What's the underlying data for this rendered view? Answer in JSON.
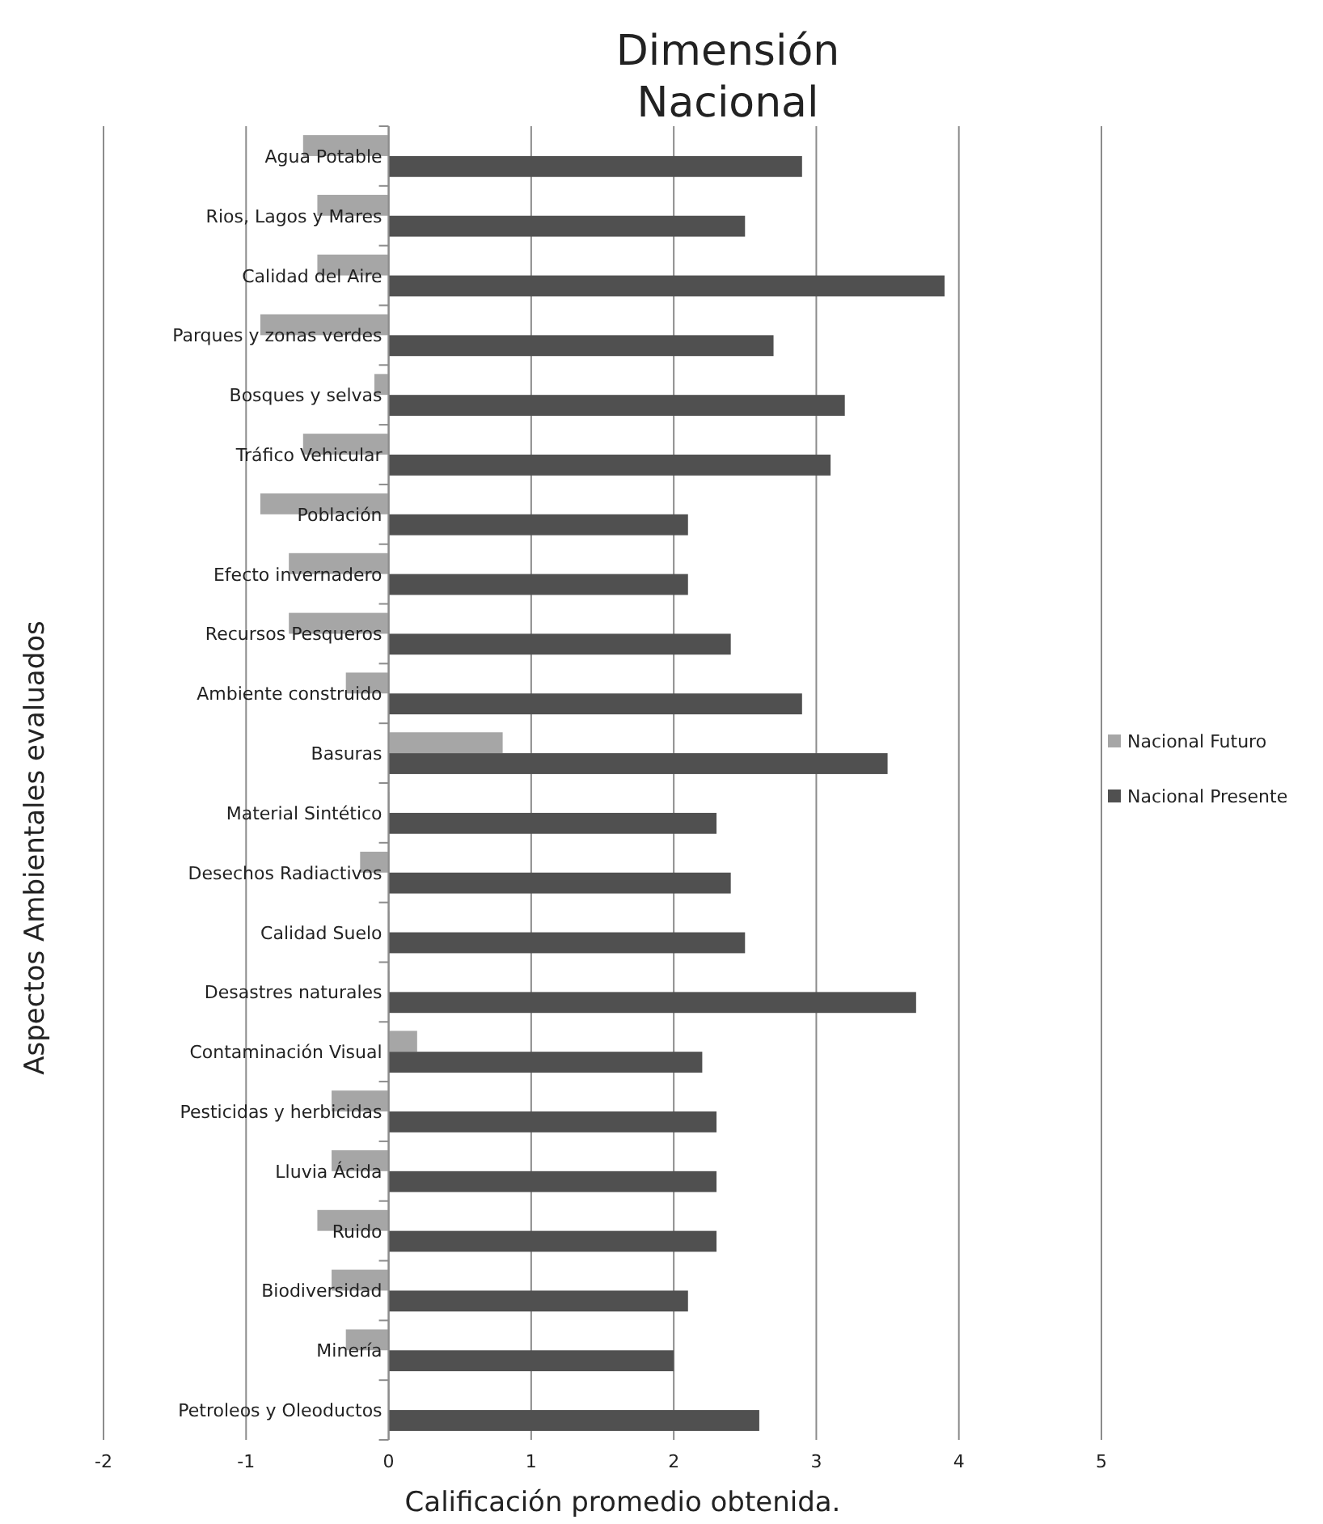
{
  "chart_data": {
    "type": "bar",
    "orientation": "horizontal",
    "title": "Dimensión Nacional",
    "xlabel": "Calificación promedio obtenida.",
    "ylabel": "Aspectos Ambientales evaluados",
    "categories": [
      "Agua Potable",
      "Rios, Lagos y Mares",
      "Calidad del Aire",
      "Parques y zonas verdes",
      "Bosques y selvas",
      "Tráfico Vehicular",
      "Población",
      "Efecto invernadero",
      "Recursos Pesqueros",
      "Ambiente construido",
      "Basuras",
      "Material Sintético",
      "Desechos Radiactivos",
      "Calidad Suelo",
      "Desastres naturales",
      "Contaminación Visual",
      "Pesticidas y herbicidas",
      "Lluvia Ácida",
      "Ruido",
      "Biodiversidad",
      "Minería",
      "Petroleos y Oleoductos"
    ],
    "series": [
      {
        "name": "Nacional Futuro",
        "color": "#a6a6a6",
        "values": [
          -0.6,
          -0.5,
          -0.5,
          -0.9,
          -0.1,
          -0.6,
          -0.9,
          -0.7,
          -0.7,
          -0.3,
          0.8,
          0,
          -0.2,
          0,
          0,
          0.2,
          -0.4,
          -0.4,
          -0.5,
          -0.4,
          -0.3,
          0
        ]
      },
      {
        "name": "Nacional Presente",
        "color": "#505050",
        "values": [
          2.9,
          2.5,
          3.9,
          2.7,
          3.2,
          3.1,
          2.1,
          2.1,
          2.4,
          2.9,
          3.5,
          2.3,
          2.4,
          2.5,
          3.7,
          2.2,
          2.3,
          2.3,
          2.3,
          2.1,
          2.0,
          2.6
        ]
      }
    ],
    "xlim": [
      -2,
      5
    ],
    "xticks": [
      -2,
      -1,
      0,
      1,
      2,
      3,
      4,
      5
    ],
    "grid": "x",
    "legend": "right"
  }
}
